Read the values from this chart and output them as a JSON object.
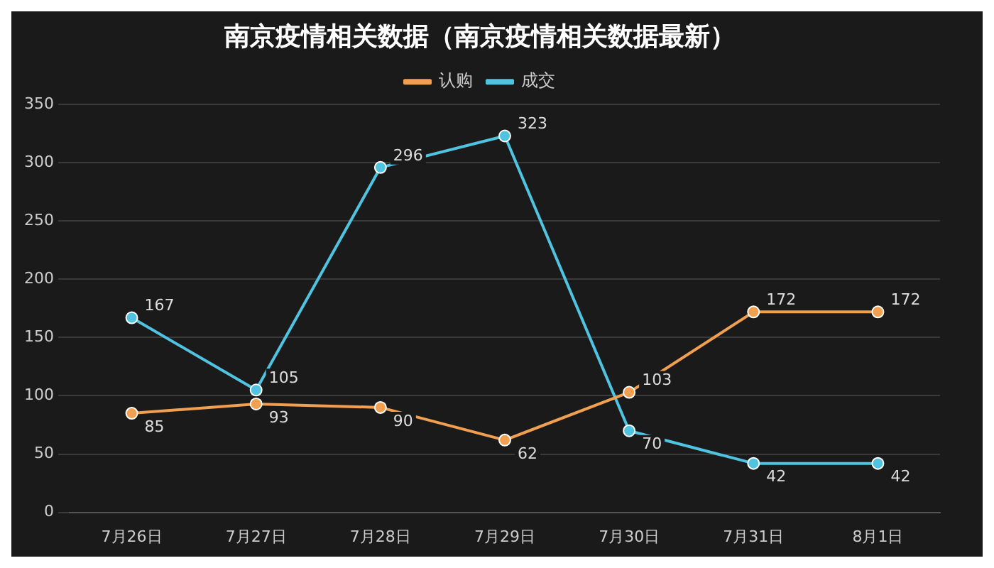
{
  "chart_data": {
    "type": "line",
    "title": "南京疫情相关数据（南京疫情相关数据最新）",
    "categories": [
      "7月26日",
      "7月27日",
      "7月28日",
      "7月29日",
      "7月30日",
      "7月31日",
      "8月1日"
    ],
    "series": [
      {
        "name": "认购",
        "color": "#f0a050",
        "values": [
          85,
          93,
          90,
          62,
          103,
          172,
          172
        ]
      },
      {
        "name": "成交",
        "color": "#4fc3e0",
        "values": [
          167,
          105,
          296,
          323,
          70,
          42,
          42
        ]
      }
    ],
    "ylim": [
      0,
      350
    ],
    "yticks": [
      0,
      50,
      100,
      150,
      200,
      250,
      300,
      350
    ],
    "grid": "y",
    "legend": "top",
    "marker": "circle",
    "line_style": "solid",
    "data_labels": true
  }
}
